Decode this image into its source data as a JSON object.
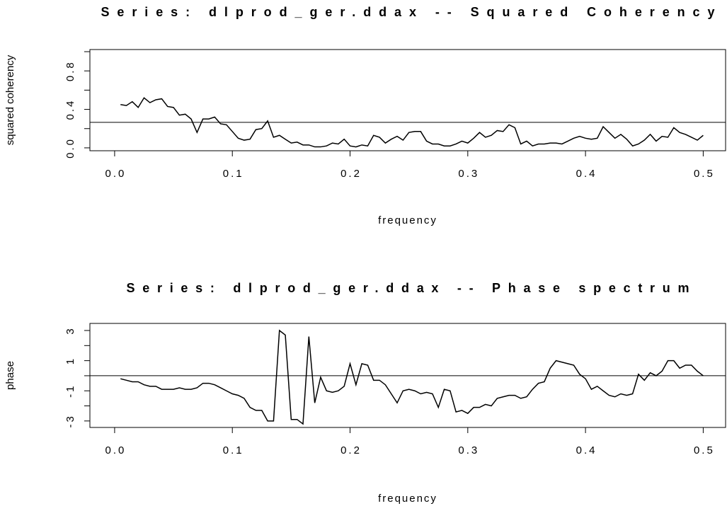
{
  "chart_data": [
    {
      "type": "line",
      "title": "Series: dlprod_ger.ddax -- Squared Coherency",
      "xlabel": "frequency",
      "ylabel": "squared coherency",
      "x": [
        0.005,
        0.01,
        0.015,
        0.02,
        0.025,
        0.03,
        0.035,
        0.04,
        0.045,
        0.05,
        0.055,
        0.06,
        0.065,
        0.07,
        0.075,
        0.08,
        0.085,
        0.09,
        0.095,
        0.1,
        0.105,
        0.11,
        0.115,
        0.12,
        0.125,
        0.13,
        0.135,
        0.14,
        0.145,
        0.15,
        0.155,
        0.16,
        0.165,
        0.17,
        0.175,
        0.18,
        0.185,
        0.19,
        0.195,
        0.2,
        0.205,
        0.21,
        0.215,
        0.22,
        0.225,
        0.23,
        0.235,
        0.24,
        0.245,
        0.25,
        0.255,
        0.26,
        0.265,
        0.27,
        0.275,
        0.28,
        0.285,
        0.29,
        0.295,
        0.3,
        0.305,
        0.31,
        0.315,
        0.32,
        0.325,
        0.33,
        0.335,
        0.34,
        0.345,
        0.35,
        0.355,
        0.36,
        0.365,
        0.37,
        0.375,
        0.38,
        0.385,
        0.39,
        0.395,
        0.4,
        0.405,
        0.41,
        0.415,
        0.42,
        0.425,
        0.43,
        0.435,
        0.44,
        0.445,
        0.45,
        0.455,
        0.46,
        0.465,
        0.47,
        0.475,
        0.48,
        0.485,
        0.49,
        0.495,
        0.5
      ],
      "values": [
        0.45,
        0.44,
        0.48,
        0.42,
        0.52,
        0.47,
        0.5,
        0.51,
        0.43,
        0.42,
        0.34,
        0.35,
        0.3,
        0.16,
        0.3,
        0.3,
        0.32,
        0.25,
        0.24,
        0.17,
        0.1,
        0.08,
        0.09,
        0.19,
        0.2,
        0.28,
        0.11,
        0.13,
        0.09,
        0.05,
        0.06,
        0.03,
        0.03,
        0.01,
        0.01,
        0.02,
        0.05,
        0.04,
        0.09,
        0.02,
        0.01,
        0.03,
        0.02,
        0.13,
        0.11,
        0.05,
        0.09,
        0.12,
        0.08,
        0.16,
        0.17,
        0.17,
        0.07,
        0.04,
        0.04,
        0.02,
        0.02,
        0.04,
        0.07,
        0.05,
        0.1,
        0.16,
        0.11,
        0.13,
        0.18,
        0.17,
        0.24,
        0.21,
        0.04,
        0.07,
        0.02,
        0.04,
        0.04,
        0.05,
        0.05,
        0.04,
        0.07,
        0.1,
        0.12,
        0.1,
        0.09,
        0.1,
        0.22,
        0.16,
        0.1,
        0.14,
        0.09,
        0.02,
        0.04,
        0.08,
        0.14,
        0.07,
        0.12,
        0.11,
        0.21,
        0.16,
        0.14,
        0.11,
        0.08,
        0.13
      ],
      "color": "#000000",
      "hline": 0.265,
      "xlim": [
        -0.021,
        0.519
      ],
      "xticks": [
        {
          "value": 0,
          "label": "0.0"
        },
        0.1,
        0.2,
        0.3,
        0.4,
        0.5
      ],
      "ylim": [
        -0.03,
        1.022
      ],
      "yticks": [
        {
          "value": 0,
          "label": "0.0"
        },
        0.4,
        0.8
      ],
      "yminor": [
        0.2,
        0.6,
        1.0
      ]
    },
    {
      "type": "line",
      "title": "Series: dlprod_ger.ddax -- Phase spectrum",
      "xlabel": "frequency",
      "ylabel": "phase",
      "x": [
        0.005,
        0.01,
        0.015,
        0.02,
        0.025,
        0.03,
        0.035,
        0.04,
        0.045,
        0.05,
        0.055,
        0.06,
        0.065,
        0.07,
        0.075,
        0.08,
        0.085,
        0.09,
        0.095,
        0.1,
        0.105,
        0.11,
        0.115,
        0.12,
        0.125,
        0.13,
        0.135,
        0.14,
        0.145,
        0.15,
        0.155,
        0.16,
        0.165,
        0.17,
        0.175,
        0.18,
        0.185,
        0.19,
        0.195,
        0.2,
        0.205,
        0.21,
        0.215,
        0.22,
        0.225,
        0.23,
        0.235,
        0.24,
        0.245,
        0.25,
        0.255,
        0.26,
        0.265,
        0.27,
        0.275,
        0.28,
        0.285,
        0.29,
        0.295,
        0.3,
        0.305,
        0.31,
        0.315,
        0.32,
        0.325,
        0.33,
        0.335,
        0.34,
        0.345,
        0.35,
        0.355,
        0.36,
        0.365,
        0.37,
        0.375,
        0.38,
        0.385,
        0.39,
        0.395,
        0.4,
        0.405,
        0.41,
        0.415,
        0.42,
        0.425,
        0.43,
        0.435,
        0.44,
        0.445,
        0.45,
        0.455,
        0.46,
        0.465,
        0.47,
        0.475,
        0.48,
        0.485,
        0.49,
        0.495,
        0.5
      ],
      "values": [
        -0.2,
        -0.3,
        -0.4,
        -0.4,
        -0.6,
        -0.7,
        -0.7,
        -0.9,
        -0.9,
        -0.9,
        -0.8,
        -0.9,
        -0.9,
        -0.8,
        -0.5,
        -0.5,
        -0.6,
        -0.8,
        -1.0,
        -1.2,
        -1.3,
        -1.5,
        -2.1,
        -2.3,
        -2.3,
        -3.0,
        -3.0,
        3.0,
        2.7,
        -2.9,
        -2.9,
        -3.2,
        2.6,
        -1.8,
        -0.1,
        -1.0,
        -1.1,
        -1.0,
        -0.7,
        0.8,
        -0.6,
        0.8,
        0.7,
        -0.3,
        -0.3,
        -0.6,
        -1.2,
        -1.8,
        -1.0,
        -0.9,
        -1.0,
        -1.2,
        -1.1,
        -1.2,
        -2.1,
        -0.9,
        -1.0,
        -2.4,
        -2.3,
        -2.5,
        -2.1,
        -2.1,
        -1.9,
        -2.0,
        -1.5,
        -1.4,
        -1.3,
        -1.3,
        -1.5,
        -1.4,
        -0.9,
        -0.5,
        -0.4,
        0.5,
        1.0,
        0.9,
        0.8,
        0.7,
        0.1,
        -0.2,
        -0.9,
        -0.7,
        -1.0,
        -1.3,
        -1.4,
        -1.2,
        -1.3,
        -1.2,
        0.1,
        -0.3,
        0.2,
        0.0,
        0.3,
        1.0,
        1.0,
        0.5,
        0.7,
        0.7,
        0.3,
        0.0
      ],
      "color": "#000000",
      "hline": 0,
      "xlim": [
        -0.021,
        0.519
      ],
      "xticks": [
        {
          "value": 0,
          "label": "0.0"
        },
        0.1,
        0.2,
        0.3,
        0.4,
        0.5
      ],
      "ylim": [
        -3.43,
        3.47
      ],
      "yticks": [
        -3,
        -1,
        1,
        3
      ],
      "yminor": [
        -2,
        0,
        2
      ]
    }
  ]
}
